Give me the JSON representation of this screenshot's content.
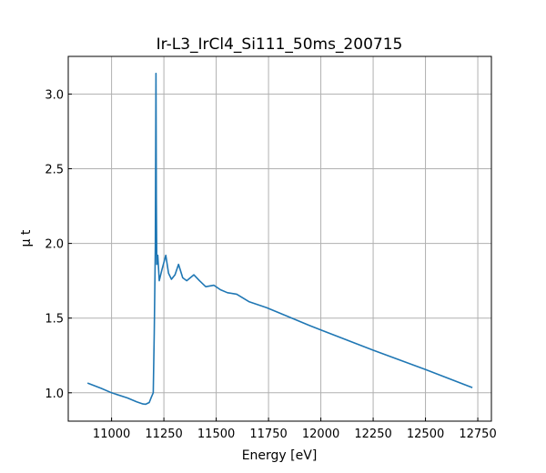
{
  "chart_data": {
    "type": "line",
    "title": "Ir-L3_IrCl4_Si111_50ms_200715",
    "xlabel": "Energy [eV]",
    "ylabel": "μ t",
    "xlim": [
      10793,
      12815
    ],
    "ylim": [
      0.81,
      3.252
    ],
    "xticks": [
      11000,
      11250,
      11500,
      11750,
      12000,
      12250,
      12500,
      12750
    ],
    "xtick_labels": [
      "11000",
      "11250",
      "11500",
      "11750",
      "12000",
      "12250",
      "12500",
      "12750"
    ],
    "yticks": [
      1.0,
      1.5,
      2.0,
      2.5,
      3.0
    ],
    "ytick_labels": [
      "1.0",
      "1.5",
      "2.0",
      "2.5",
      "3.0"
    ],
    "grid": true,
    "color": "#1f77b4",
    "series": [
      {
        "name": "mu_t",
        "x": [
          10885,
          10950,
          11000,
          11076,
          11120,
          11150,
          11163,
          11180,
          11190,
          11199,
          11204,
          11209,
          11212,
          11214,
          11216,
          11221,
          11228,
          11240,
          11259,
          11272,
          11286,
          11303,
          11320,
          11340,
          11359,
          11393,
          11420,
          11450,
          11489,
          11520,
          11554,
          11598,
          11656,
          11741,
          11800,
          11946,
          12000,
          12250,
          12500,
          12724
        ],
        "y": [
          1.065,
          1.03,
          1.0,
          0.965,
          0.94,
          0.925,
          0.923,
          0.935,
          0.97,
          1.0,
          1.4,
          1.98,
          3.138,
          2.3,
          1.86,
          1.92,
          1.75,
          1.82,
          1.92,
          1.8,
          1.76,
          1.79,
          1.86,
          1.77,
          1.75,
          1.79,
          1.75,
          1.71,
          1.72,
          1.69,
          1.67,
          1.66,
          1.61,
          1.57,
          1.535,
          1.45,
          1.42,
          1.285,
          1.155,
          1.035
        ]
      }
    ]
  }
}
